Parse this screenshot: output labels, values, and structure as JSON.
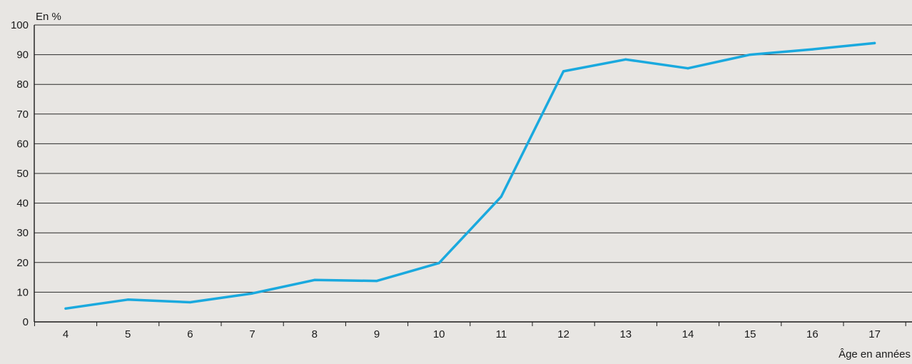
{
  "chart_data": {
    "type": "line",
    "title": "",
    "ylabel": "En %",
    "xlabel": "Âge en années",
    "x": [
      4,
      5,
      6,
      7,
      8,
      9,
      10,
      11,
      12,
      13,
      14,
      15,
      16,
      17
    ],
    "series": [
      {
        "values": [
          4.5,
          7.5,
          6.6,
          9.6,
          14.1,
          13.8,
          19.8,
          42.2,
          84.4,
          88.4,
          85.4,
          90.0,
          91.8,
          93.9
        ],
        "color": "#1aa9de"
      }
    ],
    "ylim": [
      0,
      100
    ],
    "yticks": [
      0,
      10,
      20,
      30,
      40,
      50,
      60,
      70,
      80,
      90,
      100
    ],
    "grid": true,
    "legend": "none",
    "colors": {
      "background": "#e8e6e3",
      "line": "#1aa9de",
      "grid": "#2a2a2a"
    }
  }
}
